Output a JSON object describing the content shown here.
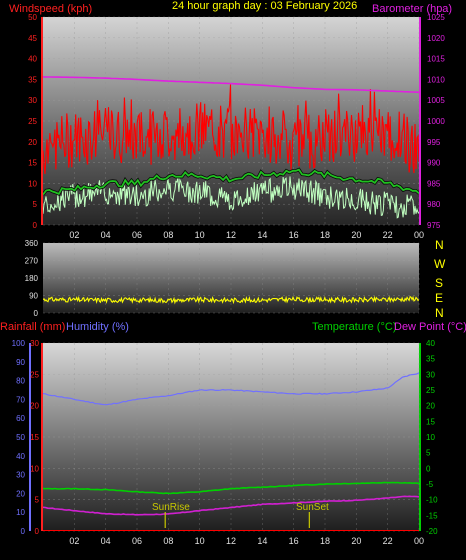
{
  "title": "24 hour graph day : 03 February 2026",
  "colors": {
    "background": "#000000",
    "wind_axis": "#ff2020",
    "baro": "#e020e0",
    "wind_gust": "#ff0000",
    "wind_avg": "#20c020",
    "wind_speed": "#c0ffc0",
    "direction": "#ffff00",
    "humidity": "#7070ff",
    "temperature": "#00d000",
    "dewpoint": "#d020d0",
    "rain": "#ff0000",
    "sun": "#c8c800"
  },
  "hour_labels": [
    "02",
    "04",
    "06",
    "08",
    "10",
    "12",
    "14",
    "16",
    "18",
    "20",
    "22",
    "00"
  ],
  "chart_data": [
    {
      "type": "line",
      "name": "wind-barometer",
      "left_axis": {
        "label": "Windspeed (kph)",
        "ylim": [
          0,
          50
        ],
        "ticks": [
          "0",
          "5",
          "10",
          "15",
          "20",
          "25",
          "30",
          "35",
          "40",
          "45",
          "50"
        ]
      },
      "right_axis": {
        "label": "Barometer (hpa)",
        "ylim": [
          975,
          1025
        ],
        "ticks": [
          "975",
          "980",
          "985",
          "990",
          "995",
          "1000",
          "1005",
          "1010",
          "1015",
          "1020",
          "1025"
        ]
      },
      "x_hours": [
        0,
        2,
        4,
        6,
        8,
        10,
        12,
        14,
        16,
        18,
        20,
        22,
        24
      ],
      "series": [
        {
          "name": "Barometer",
          "values": [
            1010.6,
            1010.5,
            1010.3,
            1010.0,
            1009.6,
            1009.3,
            1009.0,
            1008.6,
            1008.0,
            1007.6,
            1007.5,
            1007.2,
            1006.9
          ]
        },
        {
          "name": "Gust",
          "values": [
            18,
            21,
            22,
            21,
            22,
            23,
            22,
            22,
            20,
            21,
            22,
            22,
            18
          ]
        },
        {
          "name": "Average",
          "values": [
            8,
            8.5,
            10,
            10,
            12,
            12,
            11,
            12,
            13,
            12,
            11,
            10,
            8
          ]
        },
        {
          "name": "Speed",
          "values": [
            5,
            7,
            8,
            7,
            9,
            8,
            6,
            8,
            9,
            7,
            6,
            5,
            4
          ]
        }
      ]
    },
    {
      "type": "scatter",
      "name": "wind-direction",
      "left_axis": {
        "ylim": [
          0,
          360
        ],
        "ticks": [
          "0",
          "90",
          "180",
          "270",
          "360"
        ]
      },
      "right_axis": {
        "ticks": [
          "N",
          "W",
          "S",
          "E",
          "N"
        ]
      },
      "series": [
        {
          "name": "Direction",
          "x_hours": [
            0,
            2,
            4,
            6,
            8,
            10,
            12,
            14,
            16,
            18,
            20,
            22,
            24
          ],
          "values": [
            70,
            68,
            66,
            67,
            65,
            68,
            66,
            67,
            70,
            68,
            67,
            69,
            75
          ]
        }
      ]
    },
    {
      "type": "line",
      "name": "rain-humidity-temperature",
      "rain_axis": {
        "label": "Rainfall (mm)",
        "ylim": [
          0,
          30
        ],
        "ticks": [
          "0",
          "5",
          "10",
          "15",
          "20",
          "25",
          "30"
        ]
      },
      "humidity_axis": {
        "label": "Humidity (%)",
        "ylim": [
          0,
          100
        ],
        "ticks": [
          "0",
          "10",
          "20",
          "30",
          "40",
          "50",
          "60",
          "70",
          "80",
          "90",
          "100"
        ]
      },
      "temperature_axis": {
        "label": "Temperature (°C)",
        "ylim": [
          -20,
          40
        ],
        "ticks": [
          "-20",
          "-15",
          "-10",
          "-5",
          "0",
          "5",
          "10",
          "15",
          "20",
          "25",
          "30",
          "35",
          "40"
        ]
      },
      "dewpoint_label": "Dew Point (°C)",
      "x_hours": [
        0,
        2,
        4,
        6,
        8,
        10,
        12,
        14,
        16,
        18,
        20,
        22,
        23,
        24
      ],
      "series": [
        {
          "name": "Humidity",
          "values": [
            73,
            70,
            67,
            70,
            72,
            75,
            75,
            74,
            73,
            73,
            74,
            76,
            82,
            84
          ]
        },
        {
          "name": "Temperature",
          "values": [
            -6.5,
            -6.5,
            -6.8,
            -7.5,
            -8.0,
            -7.5,
            -6.5,
            -6.0,
            -5.5,
            -5.0,
            -4.8,
            -4.5,
            -4.6,
            -4.8
          ]
        },
        {
          "name": "Dew Point",
          "values": [
            -12.5,
            -13.5,
            -14.5,
            -14.8,
            -14.6,
            -13.5,
            -12.5,
            -11.5,
            -11.0,
            -10.5,
            -10.2,
            -9.5,
            -9.0,
            -9.0
          ]
        },
        {
          "name": "Rainfall",
          "values": [
            0,
            0,
            0,
            0,
            0,
            0,
            0,
            0,
            0,
            0,
            0,
            0,
            0,
            0
          ]
        }
      ],
      "sunrise": {
        "label": "SunRise",
        "hour": 7.8
      },
      "sunset": {
        "label": "SunSet",
        "hour": 17.0
      }
    }
  ]
}
